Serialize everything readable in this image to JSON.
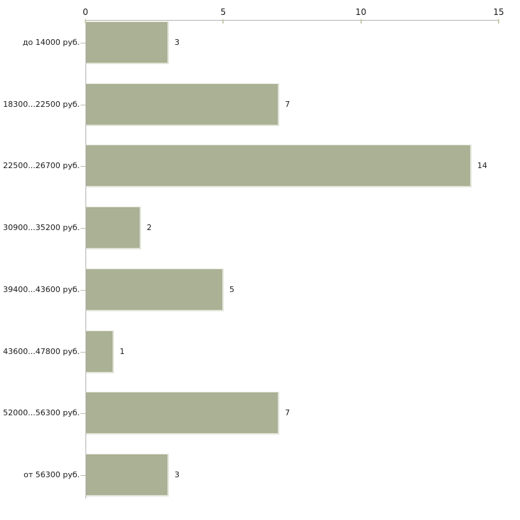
{
  "chart_data": {
    "type": "bar",
    "orientation": "horizontal",
    "title": "",
    "xlabel": "",
    "ylabel": "",
    "categories": [
      "до 14000 руб.",
      "18300...22500 руб.",
      "22500...26700 руб.",
      "30900...35200 руб.",
      "39400...43600 руб.",
      "43600...47800 руб.",
      "52000...56300 руб.",
      "от 56300 руб."
    ],
    "values": [
      3,
      7,
      14,
      2,
      5,
      1,
      7,
      3
    ],
    "value_labels": [
      "3",
      "7",
      "14",
      "2",
      "5",
      "1",
      "7",
      "3"
    ],
    "x_ticks": [
      0,
      5,
      10,
      15
    ],
    "x_tick_labels": [
      "0",
      "5",
      "10",
      "15"
    ],
    "xlim": [
      0,
      15
    ],
    "axis_position": "top",
    "grid": false,
    "legend": false,
    "colors": {
      "bar_fill": "#aab194",
      "bar_edge": "#e1e4d8",
      "axis_line": "#b3b3b3",
      "x_tick_mark": "#ccccaa",
      "y_tick_mark": "#bcbcab",
      "text": "#1a1a1a",
      "background": "#ffffff"
    }
  }
}
